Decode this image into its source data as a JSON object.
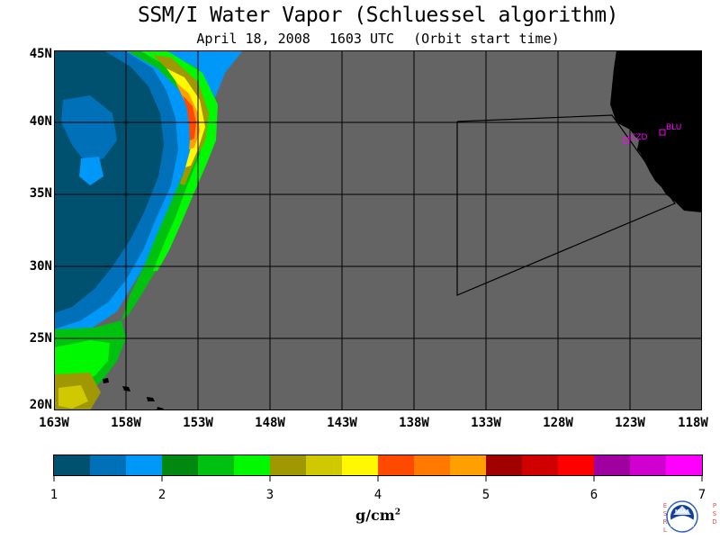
{
  "title": "SSM/I Water Vapor (Schluessel algorithm)",
  "subtitle": {
    "date": "April 18, 2008",
    "time": "1603 UTC",
    "note": "(Orbit start time)"
  },
  "map": {
    "lat_labels": [
      "45N",
      "40N",
      "35N",
      "30N",
      "25N",
      "20N"
    ],
    "lon_labels": [
      "163W",
      "158W",
      "153W",
      "148W",
      "143W",
      "138W",
      "133W",
      "128W",
      "123W",
      "118W"
    ],
    "land_color": "#000000",
    "nodata_color": "#646464",
    "stations": [
      {
        "label": "BLU"
      },
      {
        "label": "CZD"
      }
    ]
  },
  "colorbar": {
    "tick_labels": [
      "1",
      "2",
      "3",
      "4",
      "5",
      "6",
      "7"
    ],
    "colors": [
      "#005070",
      "#0070b8",
      "#0098f8",
      "#008810",
      "#00c010",
      "#00f800",
      "#a09800",
      "#d0c800",
      "#fff800",
      "#ff4800",
      "#ff7800",
      "#ffa000",
      "#a00000",
      "#d00000",
      "#ff0000",
      "#a000a0",
      "#d000d0",
      "#ff00ff"
    ],
    "unit": "g/cm",
    "unit_sup": "2"
  },
  "logo": {
    "left_text": "ESRL",
    "right_text": "PSD",
    "center_text": "NOAA"
  }
}
